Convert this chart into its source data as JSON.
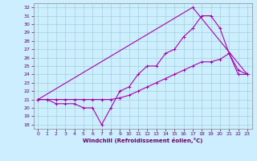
{
  "xlabel": "Windchill (Refroidissement éolien,°C)",
  "xlim": [
    -0.5,
    23.5
  ],
  "ylim": [
    17.5,
    32.5
  ],
  "xticks": [
    0,
    1,
    2,
    3,
    4,
    5,
    6,
    7,
    8,
    9,
    10,
    11,
    12,
    13,
    14,
    15,
    16,
    17,
    18,
    19,
    20,
    21,
    22,
    23
  ],
  "yticks": [
    18,
    19,
    20,
    21,
    22,
    23,
    24,
    25,
    26,
    27,
    28,
    29,
    30,
    31,
    32
  ],
  "color": "#aa00aa",
  "bg_color": "#cceeff",
  "series1_x": [
    0,
    1,
    2,
    3,
    4,
    5,
    6,
    7,
    8,
    9,
    10,
    11,
    12,
    13,
    14,
    15,
    16,
    17,
    18,
    19,
    20,
    21,
    22,
    23
  ],
  "series1_y": [
    21,
    21,
    20.5,
    20.5,
    20.5,
    20,
    20,
    18,
    20,
    22,
    22.5,
    24,
    25,
    25,
    26.5,
    27,
    28.5,
    29.5,
    31,
    31,
    29.5,
    26.5,
    24.5,
    24
  ],
  "series2_x": [
    0,
    1,
    2,
    3,
    4,
    5,
    6,
    7,
    8,
    9,
    10,
    11,
    12,
    13,
    14,
    15,
    16,
    17,
    18,
    19,
    20,
    21,
    22,
    23
  ],
  "series2_y": [
    21,
    21,
    21,
    21,
    21,
    21,
    21,
    21,
    21,
    21.2,
    21.5,
    22,
    22.5,
    23,
    23.5,
    24,
    24.5,
    25,
    25.5,
    25.5,
    25.8,
    26.5,
    24,
    24
  ],
  "series3_x": [
    0,
    17,
    23
  ],
  "series3_y": [
    21,
    32,
    24
  ]
}
